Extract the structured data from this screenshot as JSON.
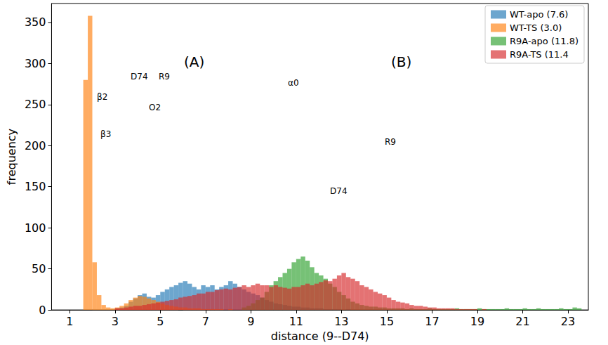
{
  "chart_data": {
    "type": "histogram",
    "x_label": "distance (9--D74)",
    "y_label": "frequency",
    "xlim": [
      0.2,
      23.9
    ],
    "xticks": [
      1,
      3,
      5,
      7,
      9,
      11,
      13,
      15,
      17,
      19,
      21,
      23
    ],
    "ylim": [
      0,
      373
    ],
    "yticks": [
      0,
      50,
      100,
      150,
      200,
      250,
      300,
      350
    ],
    "grid": false,
    "legend": "upper right",
    "annotations": [
      "(A)",
      "(B)",
      "D74",
      "R9",
      "O2",
      "β2",
      "β3",
      "α0",
      "R9",
      "D74"
    ],
    "bins": [
      1.6,
      1.8,
      2,
      2.2,
      2.4,
      2.6,
      2.8,
      3,
      3.2,
      3.4,
      3.6,
      3.8,
      4,
      4.2,
      4.4,
      4.6,
      4.8,
      5,
      5.2,
      5.4,
      5.6,
      5.8,
      6,
      6.2,
      6.4,
      6.6,
      6.8,
      7,
      7.2,
      7.4,
      7.6,
      7.8,
      8,
      8.2,
      8.4,
      8.6,
      8.8,
      9,
      9.2,
      9.4,
      9.6,
      9.8,
      10,
      10.2,
      10.4,
      10.6,
      10.8,
      11,
      11.2,
      11.4,
      11.6,
      11.8,
      12,
      12.2,
      12.4,
      12.6,
      12.8,
      13,
      13.2,
      13.4,
      13.6,
      13.8,
      14,
      14.2,
      14.4,
      14.6,
      14.8,
      15,
      15.2,
      15.4,
      15.6,
      15.8,
      16,
      16.2,
      16.4,
      16.6,
      16.8,
      17,
      17.2,
      17.4,
      17.6,
      17.8,
      18,
      18.2,
      18.4,
      18.6,
      18.8,
      19,
      19.2,
      19.4,
      19.6,
      19.8,
      20,
      20.2,
      20.4,
      20.6,
      20.8,
      21,
      21.2,
      21.4,
      21.6,
      21.8,
      22,
      22.2,
      22.4,
      22.6,
      22.8,
      23,
      23.2,
      23.4,
      23.6
    ],
    "series": [
      {
        "name": "WT-apo (7.6)",
        "color": "#1f77b4",
        "values": [
          0,
          0,
          0,
          0,
          0,
          0,
          0,
          2,
          3,
          5,
          10,
          14,
          18,
          20,
          16,
          15,
          18,
          22,
          25,
          28,
          30,
          33,
          35,
          32,
          28,
          25,
          30,
          28,
          30,
          25,
          28,
          30,
          35,
          32,
          28,
          25,
          22,
          20,
          18,
          15,
          12,
          10,
          8,
          7,
          6,
          5,
          4,
          4,
          3,
          3,
          2,
          2,
          2,
          1,
          1,
          1,
          1,
          0,
          1,
          0,
          0,
          0,
          0,
          0,
          0,
          0,
          0,
          0,
          0,
          0,
          0,
          0,
          0,
          0,
          0,
          0,
          0,
          0,
          0,
          0,
          0,
          0,
          0,
          0,
          0,
          0,
          0,
          0,
          0,
          0,
          0,
          0,
          0,
          0,
          0,
          0,
          0,
          0,
          0,
          0,
          0,
          0,
          0,
          0,
          0,
          0,
          0,
          0,
          0,
          0
        ]
      },
      {
        "name": "WT-TS (3.0)",
        "color": "#ff7f0e",
        "values": [
          280,
          358,
          58,
          18,
          6,
          3,
          2,
          3,
          5,
          8,
          12,
          15,
          17,
          16,
          14,
          12,
          10,
          8,
          6,
          5,
          4,
          3,
          3,
          2,
          2,
          2,
          1,
          1,
          1,
          1,
          1,
          0,
          1,
          0,
          0,
          0,
          0,
          0,
          0,
          0,
          0,
          0,
          0,
          0,
          0,
          0,
          0,
          0,
          0,
          0,
          0,
          0,
          0,
          0,
          0,
          0,
          0,
          0,
          0,
          0,
          0,
          0,
          0,
          0,
          0,
          0,
          0,
          0,
          0,
          0,
          0,
          0,
          0,
          0,
          0,
          0,
          0,
          0,
          0,
          0,
          0,
          0,
          0,
          0,
          0,
          0,
          0,
          0,
          0,
          0,
          0,
          0,
          0,
          0,
          0,
          0,
          0,
          0,
          0,
          0,
          0,
          0,
          0,
          0,
          0,
          0,
          0,
          0,
          0,
          0
        ]
      },
      {
        "name": "R9A-apo (11.8)",
        "color": "#2ca02c",
        "values": [
          0,
          0,
          0,
          0,
          0,
          0,
          0,
          0,
          0,
          0,
          0,
          0,
          0,
          0,
          0,
          0,
          0,
          0,
          0,
          0,
          0,
          0,
          0,
          0,
          0,
          0,
          0,
          0,
          0,
          0,
          0,
          0,
          0,
          0,
          0,
          3,
          5,
          8,
          12,
          15,
          22,
          30,
          35,
          40,
          45,
          50,
          58,
          62,
          65,
          60,
          52,
          45,
          42,
          38,
          32,
          28,
          22,
          18,
          14,
          10,
          8,
          6,
          5,
          4,
          4,
          3,
          3,
          2,
          2,
          2,
          2,
          1,
          2,
          1,
          1,
          1,
          2,
          1,
          1,
          1,
          1,
          1,
          2,
          1,
          1,
          1,
          1,
          2,
          1,
          1,
          1,
          1,
          1,
          2,
          1,
          1,
          1,
          2,
          1,
          1,
          2,
          1,
          1,
          1,
          1,
          2,
          1,
          1,
          3,
          2
        ]
      },
      {
        "name": "R9A-TS (11.4",
        "color": "#d62728",
        "values": [
          0,
          0,
          0,
          0,
          0,
          0,
          0,
          2,
          2,
          3,
          4,
          5,
          5,
          6,
          7,
          8,
          9,
          10,
          11,
          12,
          13,
          15,
          16,
          17,
          18,
          20,
          20,
          22,
          22,
          24,
          25,
          26,
          25,
          27,
          28,
          30,
          28,
          30,
          32,
          30,
          30,
          28,
          30,
          28,
          27,
          26,
          28,
          28,
          30,
          32,
          30,
          32,
          34,
          36,
          35,
          38,
          42,
          45,
          40,
          38,
          35,
          30,
          28,
          25,
          22,
          20,
          18,
          15,
          12,
          10,
          9,
          8,
          6,
          5,
          5,
          4,
          3,
          3,
          2,
          2,
          2,
          2,
          1,
          1,
          1,
          1,
          1,
          0,
          1,
          0,
          0,
          0,
          0,
          0,
          0,
          0,
          0,
          0,
          0,
          0,
          0,
          0,
          0,
          0,
          0,
          0,
          0,
          0,
          0,
          0
        ]
      }
    ]
  }
}
